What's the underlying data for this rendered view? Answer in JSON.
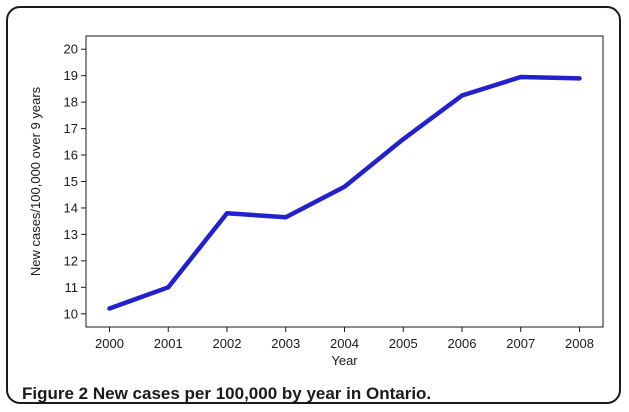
{
  "caption": {
    "figure_number": "Figure 2",
    "text": "New cases per 100,000 by year in Ontario."
  },
  "colors": {
    "line": "#2222cc",
    "axis": "#1a1a1a"
  },
  "chart_data": {
    "type": "line",
    "title": "",
    "xlabel": "Year",
    "ylabel": "New cases/100,000 over 9 years",
    "x": [
      2000,
      2001,
      2002,
      2003,
      2004,
      2005,
      2006,
      2007,
      2008
    ],
    "xticks": [
      "2000",
      "2001",
      "2002",
      "2003",
      "2004",
      "2005",
      "2006",
      "2007",
      "2008"
    ],
    "yticks": [
      "10",
      "11",
      "12",
      "13",
      "14",
      "15",
      "16",
      "17",
      "18",
      "19",
      "20"
    ],
    "ylim": [
      9.5,
      20.5
    ],
    "xlim": [
      1999.6,
      2008.4
    ],
    "grid": false,
    "legend": "none",
    "series": [
      {
        "values": [
          10.2,
          11.0,
          13.8,
          13.65,
          14.8,
          16.6,
          18.25,
          18.95,
          18.9
        ]
      }
    ]
  }
}
